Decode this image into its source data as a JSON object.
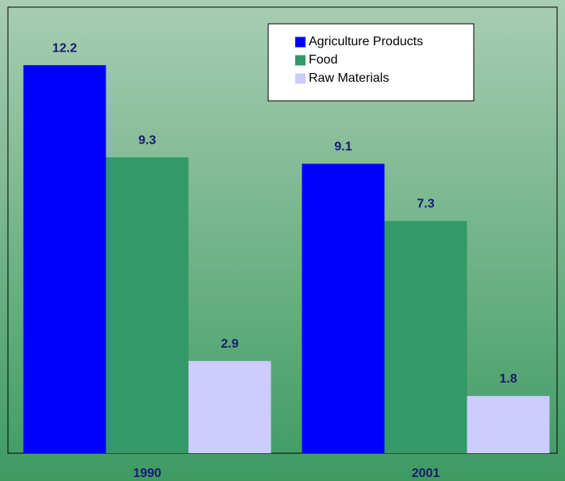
{
  "chart_data": {
    "type": "bar",
    "categories": [
      "1990",
      "2001"
    ],
    "series": [
      {
        "name": "Agriculture Products",
        "color": "#0000ff",
        "values": [
          12.2,
          9.1
        ]
      },
      {
        "name": "Food",
        "color": "#339966",
        "values": [
          9.3,
          7.3
        ]
      },
      {
        "name": "Raw Materials",
        "color": "#ccccff",
        "values": [
          2.9,
          1.8
        ]
      }
    ],
    "ylim": [
      0,
      14
    ],
    "legend": "upper right"
  }
}
